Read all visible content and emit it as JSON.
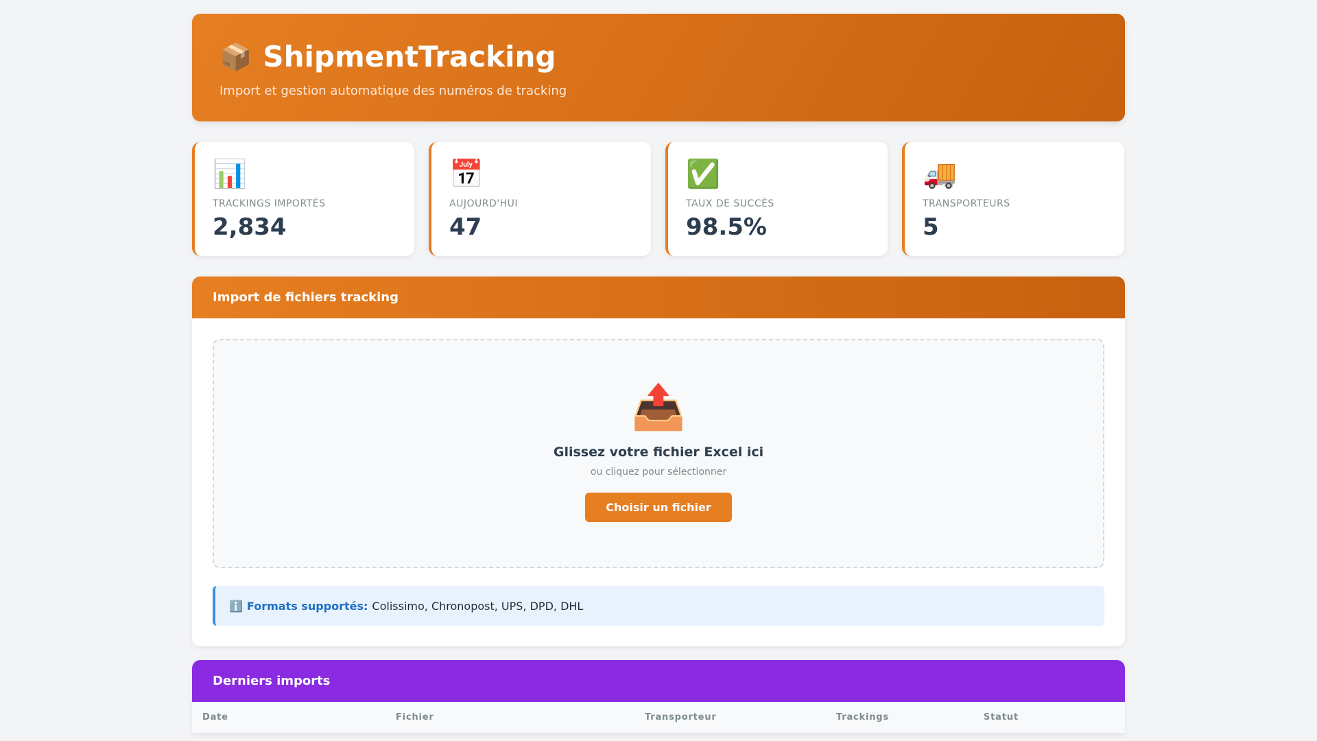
{
  "header": {
    "logo_icon": "📦",
    "title": "ShipmentTracking",
    "subtitle": "Import et gestion automatique des numéros de tracking"
  },
  "stats": [
    {
      "icon": "📊",
      "icon_name": "bar-chart-icon",
      "label": "Trackings importés",
      "value": "2,834"
    },
    {
      "icon": "📅",
      "icon_name": "calendar-icon",
      "label": "Aujourd'hui",
      "value": "47"
    },
    {
      "icon": "✅",
      "icon_name": "check-icon",
      "label": "Taux de succès",
      "value": "98.5%"
    },
    {
      "icon": "🚚",
      "icon_name": "truck-icon",
      "label": "Transporteurs",
      "value": "5"
    }
  ],
  "import": {
    "title": "Import de fichiers tracking",
    "upload_icon": "📤",
    "drop_title": "Glissez votre fichier Excel ici",
    "drop_sub": "ou cliquez pour sélectionner",
    "button": "Choisir un fichier",
    "info_icon": "ℹ️",
    "info_label": "Formats supportés:",
    "info_text": "Colissimo, Chronopost, UPS, DPD, DHL"
  },
  "recent": {
    "title": "Derniers imports",
    "columns": [
      "Date",
      "Fichier",
      "Transporteur",
      "Trackings",
      "Statut"
    ]
  },
  "colors": {
    "accent": "#e67e22",
    "accent_dark": "#c8610f",
    "purple": "#8a2be2",
    "info_blue": "#1e70c1"
  }
}
